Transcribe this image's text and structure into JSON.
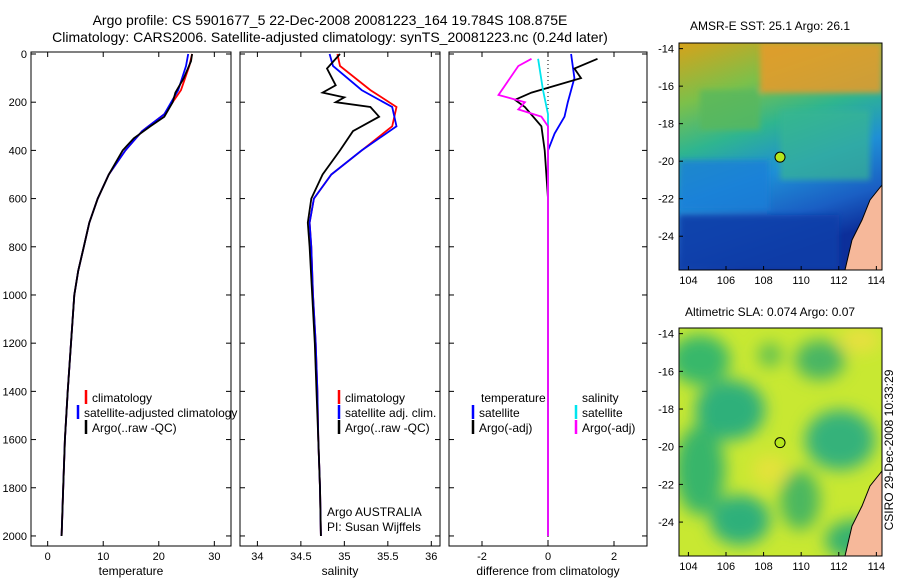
{
  "header": {
    "line1": "Argo profile: CS 5901677_5 22-Dec-2008 20081223_164 19.784S 108.875E",
    "line2": "Climatology: CARS2006. Satellite-adjusted climatology: synTS_20081223.nc (0.24d later)"
  },
  "side_label": "CSIRO 29-Dec-2008 10:33:29",
  "depth_ticks": [
    "0",
    "200",
    "400",
    "600",
    "800",
    "1000",
    "1200",
    "1400",
    "1600",
    "1800",
    "2000"
  ],
  "colors": {
    "climatology": "#ff0000",
    "satellite": "#0000ff",
    "argo": "#000000",
    "cyan": "#00e5ee",
    "magenta": "#ff00ff"
  },
  "chart_data": [
    {
      "type": "line",
      "xlabel": "temperature",
      "xticks": [
        "0",
        "10",
        "20",
        "30"
      ],
      "xlim": [
        -3,
        33
      ],
      "ylim": [
        2050,
        0
      ],
      "legend": [
        "climatology",
        "satellite-adjusted climatology",
        "Argo(..raw -QC)"
      ],
      "series": [
        {
          "name": "climatology",
          "color": "red",
          "points": [
            [
              26,
              0
            ],
            [
              25.5,
              50
            ],
            [
              24,
              150
            ],
            [
              21,
              250
            ],
            [
              17,
              320
            ],
            [
              14,
              400
            ],
            [
              11,
              500
            ],
            [
              9,
              600
            ],
            [
              7.5,
              700
            ],
            [
              6.5,
              800
            ],
            [
              5.5,
              900
            ],
            [
              4.8,
              1000
            ],
            [
              4.2,
              1200
            ],
            [
              3.6,
              1400
            ],
            [
              3.1,
              1600
            ],
            [
              2.8,
              1800
            ],
            [
              2.5,
              2000
            ]
          ]
        },
        {
          "name": "satellite-adjusted climatology",
          "color": "blue",
          "points": [
            [
              25.3,
              0
            ],
            [
              24.9,
              50
            ],
            [
              23.5,
              150
            ],
            [
              21,
              250
            ],
            [
              17,
              320
            ],
            [
              14,
              400
            ],
            [
              11,
              500
            ],
            [
              9,
              600
            ],
            [
              7.5,
              700
            ],
            [
              6.5,
              800
            ],
            [
              5.5,
              900
            ],
            [
              4.8,
              1000
            ],
            [
              4.2,
              1200
            ],
            [
              3.6,
              1400
            ],
            [
              3.1,
              1600
            ],
            [
              2.8,
              1800
            ],
            [
              2.5,
              2000
            ]
          ]
        },
        {
          "name": "Argo(..raw -QC)",
          "color": "black",
          "points": [
            [
              26,
              0
            ],
            [
              25.8,
              30
            ],
            [
              24.5,
              100
            ],
            [
              23,
              160
            ],
            [
              22.5,
              200
            ],
            [
              21,
              260
            ],
            [
              18.5,
              300
            ],
            [
              15.5,
              350
            ],
            [
              13.5,
              400
            ],
            [
              11,
              500
            ],
            [
              9,
              600
            ],
            [
              7.5,
              700
            ],
            [
              6.5,
              800
            ],
            [
              5.5,
              900
            ],
            [
              4.8,
              1000
            ],
            [
              4.2,
              1200
            ],
            [
              3.6,
              1400
            ],
            [
              3.1,
              1600
            ],
            [
              2.8,
              1800
            ],
            [
              2.5,
              2000
            ]
          ]
        }
      ]
    },
    {
      "type": "line",
      "xlabel": "salinity",
      "xticks": [
        "34",
        "34.5",
        "35",
        "35.5",
        "36"
      ],
      "xlim": [
        33.8,
        36.1
      ],
      "ylim": [
        2050,
        0
      ],
      "legend": [
        "climatology",
        "satellite adj. clim.",
        "Argo(..raw -QC)"
      ],
      "annotation": [
        "Argo AUSTRALIA",
        "PI: Susan Wijffels"
      ],
      "series": [
        {
          "name": "climatology",
          "color": "red",
          "points": [
            [
              34.92,
              0
            ],
            [
              34.95,
              50
            ],
            [
              35.3,
              150
            ],
            [
              35.6,
              220
            ],
            [
              35.55,
              300
            ],
            [
              35.2,
              400
            ],
            [
              34.85,
              500
            ],
            [
              34.65,
              600
            ],
            [
              34.6,
              700
            ],
            [
              34.62,
              800
            ],
            [
              34.64,
              1000
            ],
            [
              34.67,
              1200
            ],
            [
              34.69,
              1400
            ],
            [
              34.7,
              1600
            ],
            [
              34.72,
              1800
            ],
            [
              34.73,
              2000
            ]
          ]
        },
        {
          "name": "satellite adj. clim.",
          "color": "blue",
          "points": [
            [
              34.83,
              0
            ],
            [
              34.87,
              50
            ],
            [
              35.2,
              150
            ],
            [
              35.55,
              220
            ],
            [
              35.6,
              300
            ],
            [
              35.2,
              400
            ],
            [
              34.85,
              500
            ],
            [
              34.65,
              600
            ],
            [
              34.6,
              700
            ],
            [
              34.62,
              800
            ],
            [
              34.64,
              1000
            ],
            [
              34.67,
              1200
            ],
            [
              34.69,
              1400
            ],
            [
              34.7,
              1600
            ],
            [
              34.72,
              1800
            ],
            [
              34.73,
              2000
            ]
          ]
        },
        {
          "name": "Argo(..raw -QC)",
          "color": "black",
          "points": [
            [
              34.95,
              0
            ],
            [
              34.8,
              60
            ],
            [
              34.9,
              130
            ],
            [
              34.75,
              160
            ],
            [
              35.0,
              180
            ],
            [
              34.9,
              200
            ],
            [
              35.3,
              220
            ],
            [
              35.4,
              260
            ],
            [
              35.1,
              320
            ],
            [
              34.95,
              400
            ],
            [
              34.75,
              500
            ],
            [
              34.62,
              600
            ],
            [
              34.58,
              700
            ],
            [
              34.6,
              800
            ],
            [
              34.63,
              1000
            ],
            [
              34.66,
              1200
            ],
            [
              34.68,
              1400
            ],
            [
              34.7,
              1600
            ],
            [
              34.72,
              1800
            ],
            [
              34.73,
              2000
            ]
          ]
        }
      ]
    },
    {
      "type": "line",
      "xlabel": "difference from climatology",
      "xticks": [
        "-2",
        "0",
        "2"
      ],
      "xlim": [
        -3,
        3
      ],
      "ylim": [
        2050,
        0
      ],
      "legend_left_title": "temperature",
      "legend_right_title": "salinity",
      "legend_left": [
        "satellite",
        "Argo(-adj)"
      ],
      "legend_right": [
        "satellite",
        "Argo(-adj)"
      ],
      "series": [
        {
          "name": "T satellite",
          "color": "blue",
          "points": [
            [
              0.7,
              0
            ],
            [
              0.8,
              100
            ],
            [
              0.6,
              200
            ],
            [
              0.5,
              260
            ],
            [
              0.2,
              330
            ],
            [
              0,
              400
            ],
            [
              0,
              2000
            ]
          ]
        },
        {
          "name": "T Argo(-adj)",
          "color": "black",
          "points": [
            [
              1.5,
              20
            ],
            [
              0.8,
              60
            ],
            [
              1.0,
              100
            ],
            [
              -0.5,
              160
            ],
            [
              -1.0,
              190
            ],
            [
              -0.7,
              220
            ],
            [
              -0.2,
              300
            ],
            [
              -0.1,
              400
            ],
            [
              0,
              600
            ],
            [
              0,
              2000
            ]
          ]
        },
        {
          "name": "S satellite",
          "color": "cyan",
          "points": [
            [
              -0.3,
              20
            ],
            [
              -0.15,
              150
            ],
            [
              0,
              250
            ],
            [
              0,
              600
            ],
            [
              0,
              2000
            ]
          ]
        },
        {
          "name": "S Argo(-adj)",
          "color": "magenta",
          "points": [
            [
              -0.5,
              20
            ],
            [
              -0.9,
              50
            ],
            [
              -1.5,
              170
            ],
            [
              -0.7,
              200
            ],
            [
              -0.9,
              230
            ],
            [
              -0.2,
              260
            ],
            [
              0,
              300
            ],
            [
              0,
              2000
            ]
          ]
        }
      ]
    },
    {
      "type": "heatmap",
      "title": "AMSR-E SST: 25.1 Argo: 26.1",
      "xticks": [
        "104",
        "106",
        "108",
        "110",
        "112",
        "114"
      ],
      "yticks": [
        "-14",
        "-16",
        "-18",
        "-20",
        "-22",
        "-24"
      ],
      "xlim": [
        103.5,
        114.3
      ],
      "ylim": [
        -25.8,
        -13.7
      ],
      "float_position": {
        "lon": 108.875,
        "lat": -19.784
      }
    },
    {
      "type": "heatmap",
      "title": "Altimetric SLA: 0.074 Argo: 0.07",
      "xticks": [
        "104",
        "106",
        "108",
        "110",
        "112",
        "114"
      ],
      "yticks": [
        "-14",
        "-16",
        "-18",
        "-20",
        "-22",
        "-24"
      ],
      "xlim": [
        103.5,
        114.3
      ],
      "ylim": [
        -25.8,
        -13.7
      ],
      "float_position": {
        "lon": 108.875,
        "lat": -19.784
      }
    }
  ]
}
